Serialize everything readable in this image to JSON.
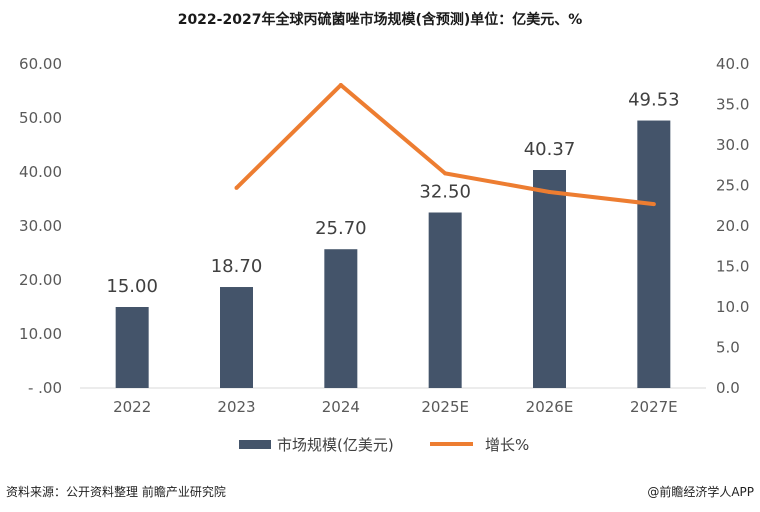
{
  "chart_data": {
    "type": "bar+line",
    "title": "2022-2027年全球丙硫菌唑市场规模(含预测)单位：亿美元、%",
    "categories": [
      "2022",
      "2023",
      "2024",
      "2025E",
      "2026E",
      "2027E"
    ],
    "series": [
      {
        "name": "市场规模(亿美元)",
        "type": "bar",
        "axis": "left",
        "color": "#44546A",
        "values": [
          15.0,
          18.7,
          25.7,
          32.5,
          40.37,
          49.53
        ],
        "labels": [
          "15.00",
          "18.70",
          "25.70",
          "32.50",
          "40.37",
          "49.53"
        ]
      },
      {
        "name": "增长%",
        "type": "line",
        "axis": "right",
        "color": "#ED7D31",
        "values": [
          null,
          24.7,
          37.4,
          26.5,
          24.2,
          22.7
        ]
      }
    ],
    "left_axis": {
      "min": 0,
      "max": 60,
      "step": 10,
      "tick_labels": [
        "- .00",
        "10.00",
        "20.00",
        "30.00",
        "40.00",
        "50.00",
        "60.00"
      ]
    },
    "right_axis": {
      "min": 0,
      "max": 40,
      "step": 5,
      "tick_labels": [
        "0.0",
        "5.0",
        "10.0",
        "15.0",
        "20.0",
        "25.0",
        "30.0",
        "35.0",
        "40.0"
      ]
    },
    "legend_position": "bottom",
    "grid": false
  },
  "footer": {
    "source": "资料来源：公开资料整理 前瞻产业研究院",
    "credit": "@前瞻经济学人APP"
  }
}
